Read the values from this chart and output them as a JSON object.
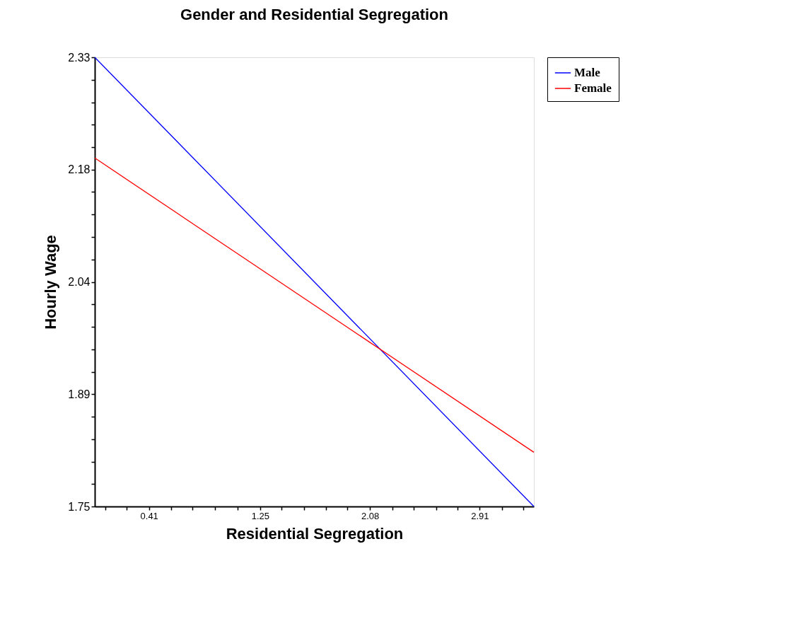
{
  "chart_data": {
    "type": "line",
    "title": "Gender and Residential Segregation",
    "xlabel": "Residential Segregation",
    "ylabel": "Hourly Wage",
    "x": [
      0,
      3.32
    ],
    "series": [
      {
        "name": "Male",
        "color": "#0000ff",
        "values": [
          2.33,
          1.75
        ]
      },
      {
        "name": "Female",
        "color": "#ff0000",
        "values": [
          2.2,
          1.82
        ]
      }
    ],
    "xlim": [
      0,
      3.32
    ],
    "ylim": [
      1.75,
      2.33
    ],
    "xticks": [
      {
        "value": 0.08,
        "label": null
      },
      {
        "value": 0.24,
        "label": null
      },
      0.41,
      {
        "value": 0.58,
        "label": null
      },
      {
        "value": 0.74,
        "label": null
      },
      {
        "value": 0.91,
        "label": null
      },
      {
        "value": 1.08,
        "label": null
      },
      1.25,
      {
        "value": 1.41,
        "label": null
      },
      {
        "value": 1.58,
        "label": null
      },
      {
        "value": 1.75,
        "label": null
      },
      {
        "value": 1.91,
        "label": null
      },
      2.08,
      {
        "value": 2.25,
        "label": null
      },
      {
        "value": 2.41,
        "label": null
      },
      {
        "value": 2.58,
        "label": null
      },
      {
        "value": 2.74,
        "label": null
      },
      2.91,
      {
        "value": 3.08,
        "label": null
      },
      {
        "value": 3.24,
        "label": null
      }
    ],
    "yticks": [
      2.33,
      {
        "value": 2.301,
        "label": null
      },
      {
        "value": 2.272,
        "label": null
      },
      {
        "value": 2.243,
        "label": null
      },
      {
        "value": 2.214,
        "label": null
      },
      {
        "value": 2.185,
        "label": "2.18"
      },
      {
        "value": 2.156,
        "label": null
      },
      {
        "value": 2.127,
        "label": null
      },
      {
        "value": 2.098,
        "label": null
      },
      {
        "value": 2.069,
        "label": null
      },
      2.04,
      {
        "value": 2.011,
        "label": null
      },
      {
        "value": 1.982,
        "label": null
      },
      {
        "value": 1.953,
        "label": null
      },
      {
        "value": 1.924,
        "label": null
      },
      {
        "value": 1.895,
        "label": "1.89"
      },
      {
        "value": 1.866,
        "label": null
      },
      {
        "value": 1.837,
        "label": null
      },
      {
        "value": 1.808,
        "label": null
      },
      {
        "value": 1.779,
        "label": null
      },
      1.75
    ],
    "grid": false,
    "legend": "top right",
    "marker": "none",
    "line_style": "solid"
  }
}
